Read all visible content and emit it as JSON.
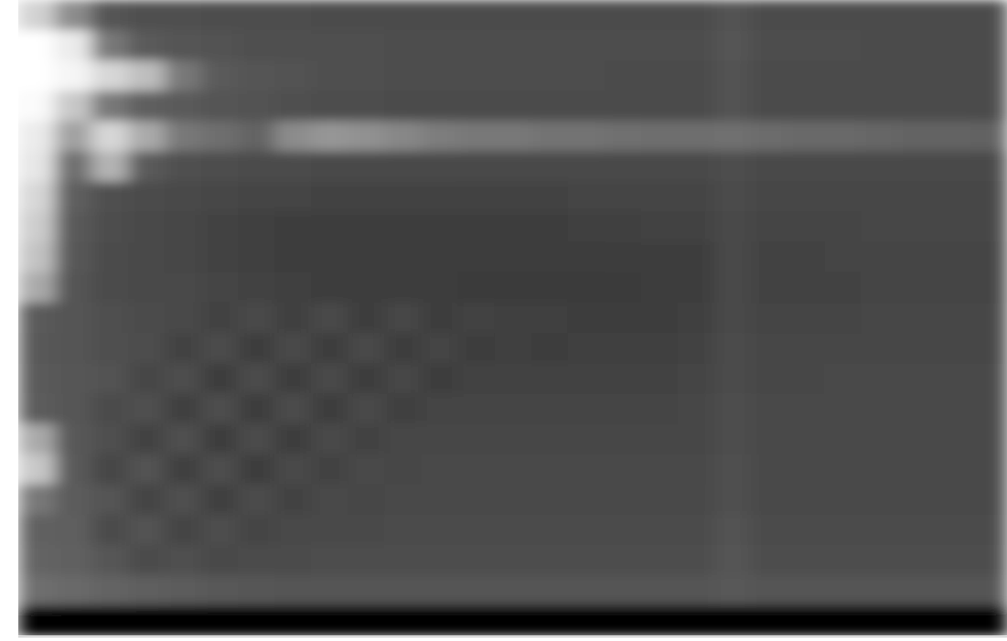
{
  "chart_data": {
    "type": "heatmap",
    "tick_labels": false,
    "zlim": [
      0,
      255
    ],
    "cells": [
      [
        210,
        140,
        85,
        80,
        80,
        78,
        78,
        78,
        76,
        76,
        76,
        76,
        76,
        76,
        76,
        76,
        76,
        76,
        76,
        82,
        76,
        76,
        76,
        76,
        76,
        76,
        76
      ],
      [
        255,
        235,
        120,
        90,
        85,
        82,
        80,
        80,
        80,
        80,
        78,
        78,
        78,
        78,
        78,
        78,
        78,
        78,
        78,
        84,
        78,
        78,
        78,
        76,
        76,
        76,
        76
      ],
      [
        255,
        245,
        215,
        190,
        120,
        90,
        85,
        82,
        80,
        80,
        78,
        78,
        78,
        78,
        78,
        78,
        76,
        76,
        76,
        82,
        76,
        76,
        76,
        76,
        76,
        76,
        76
      ],
      [
        250,
        200,
        120,
        95,
        90,
        85,
        82,
        80,
        78,
        78,
        76,
        76,
        76,
        76,
        76,
        76,
        76,
        76,
        76,
        82,
        76,
        76,
        76,
        76,
        76,
        76,
        76
      ],
      [
        235,
        160,
        215,
        170,
        120,
        110,
        100,
        140,
        150,
        145,
        135,
        125,
        120,
        120,
        115,
        115,
        112,
        110,
        110,
        112,
        108,
        105,
        105,
        102,
        100,
        100,
        98
      ],
      [
        230,
        110,
        180,
        90,
        80,
        78,
        76,
        76,
        74,
        74,
        74,
        74,
        72,
        72,
        72,
        72,
        72,
        72,
        72,
        78,
        72,
        72,
        72,
        72,
        72,
        72,
        72
      ],
      [
        215,
        95,
        80,
        76,
        72,
        70,
        68,
        68,
        66,
        66,
        66,
        66,
        66,
        66,
        66,
        68,
        68,
        68,
        68,
        76,
        70,
        70,
        70,
        70,
        70,
        70,
        70
      ],
      [
        205,
        90,
        78,
        74,
        70,
        66,
        64,
        62,
        62,
        62,
        62,
        62,
        62,
        62,
        62,
        64,
        64,
        66,
        66,
        74,
        68,
        68,
        68,
        70,
        70,
        70,
        70
      ],
      [
        195,
        88,
        76,
        72,
        70,
        66,
        64,
        62,
        60,
        60,
        60,
        60,
        60,
        60,
        60,
        60,
        62,
        62,
        62,
        72,
        66,
        66,
        68,
        68,
        68,
        68,
        68
      ],
      [
        170,
        84,
        76,
        74,
        72,
        68,
        66,
        64,
        62,
        60,
        60,
        60,
        58,
        58,
        58,
        58,
        58,
        60,
        60,
        72,
        66,
        66,
        66,
        68,
        68,
        68,
        68
      ],
      [
        90,
        84,
        80,
        76,
        72,
        66,
        74,
        64,
        72,
        62,
        70,
        62,
        66,
        64,
        64,
        60,
        62,
        62,
        64,
        74,
        68,
        68,
        68,
        70,
        70,
        70,
        70
      ],
      [
        88,
        84,
        80,
        78,
        66,
        76,
        62,
        74,
        60,
        72,
        60,
        68,
        60,
        64,
        62,
        64,
        64,
        64,
        66,
        76,
        70,
        70,
        70,
        70,
        70,
        70,
        70
      ],
      [
        90,
        86,
        82,
        70,
        78,
        62,
        76,
        60,
        74,
        60,
        70,
        62,
        66,
        66,
        66,
        66,
        66,
        66,
        68,
        76,
        70,
        70,
        72,
        72,
        72,
        72,
        72
      ],
      [
        92,
        86,
        76,
        80,
        64,
        78,
        60,
        76,
        62,
        72,
        64,
        68,
        68,
        68,
        68,
        68,
        68,
        68,
        70,
        78,
        72,
        72,
        72,
        72,
        72,
        72,
        72
      ],
      [
        170,
        88,
        80,
        66,
        80,
        62,
        76,
        62,
        72,
        66,
        70,
        70,
        70,
        70,
        70,
        70,
        70,
        70,
        70,
        78,
        72,
        72,
        72,
        72,
        72,
        72,
        72
      ],
      [
        200,
        90,
        70,
        82,
        64,
        78,
        62,
        74,
        66,
        72,
        70,
        72,
        72,
        72,
        72,
        72,
        72,
        72,
        72,
        80,
        74,
        74,
        74,
        74,
        74,
        74,
        74
      ],
      [
        120,
        92,
        84,
        68,
        80,
        64,
        76,
        66,
        72,
        70,
        74,
        74,
        74,
        74,
        74,
        74,
        74,
        74,
        74,
        80,
        74,
        74,
        74,
        74,
        74,
        74,
        74
      ],
      [
        96,
        94,
        76,
        82,
        68,
        78,
        68,
        74,
        72,
        74,
        76,
        76,
        76,
        76,
        76,
        76,
        76,
        76,
        76,
        82,
        76,
        76,
        76,
        76,
        76,
        76,
        76
      ],
      [
        100,
        96,
        86,
        76,
        80,
        74,
        76,
        76,
        78,
        78,
        78,
        78,
        78,
        78,
        78,
        78,
        78,
        78,
        78,
        84,
        78,
        78,
        78,
        78,
        78,
        78,
        78
      ],
      [
        110,
        105,
        100,
        95,
        92,
        88,
        86,
        84,
        84,
        84,
        84,
        84,
        84,
        84,
        84,
        84,
        84,
        84,
        84,
        88,
        84,
        84,
        84,
        84,
        84,
        84,
        84
      ],
      [
        0,
        0,
        0,
        0,
        0,
        0,
        0,
        0,
        0,
        0,
        0,
        0,
        0,
        0,
        0,
        0,
        0,
        0,
        0,
        0,
        0,
        0,
        0,
        0,
        0,
        0,
        0
      ]
    ]
  }
}
